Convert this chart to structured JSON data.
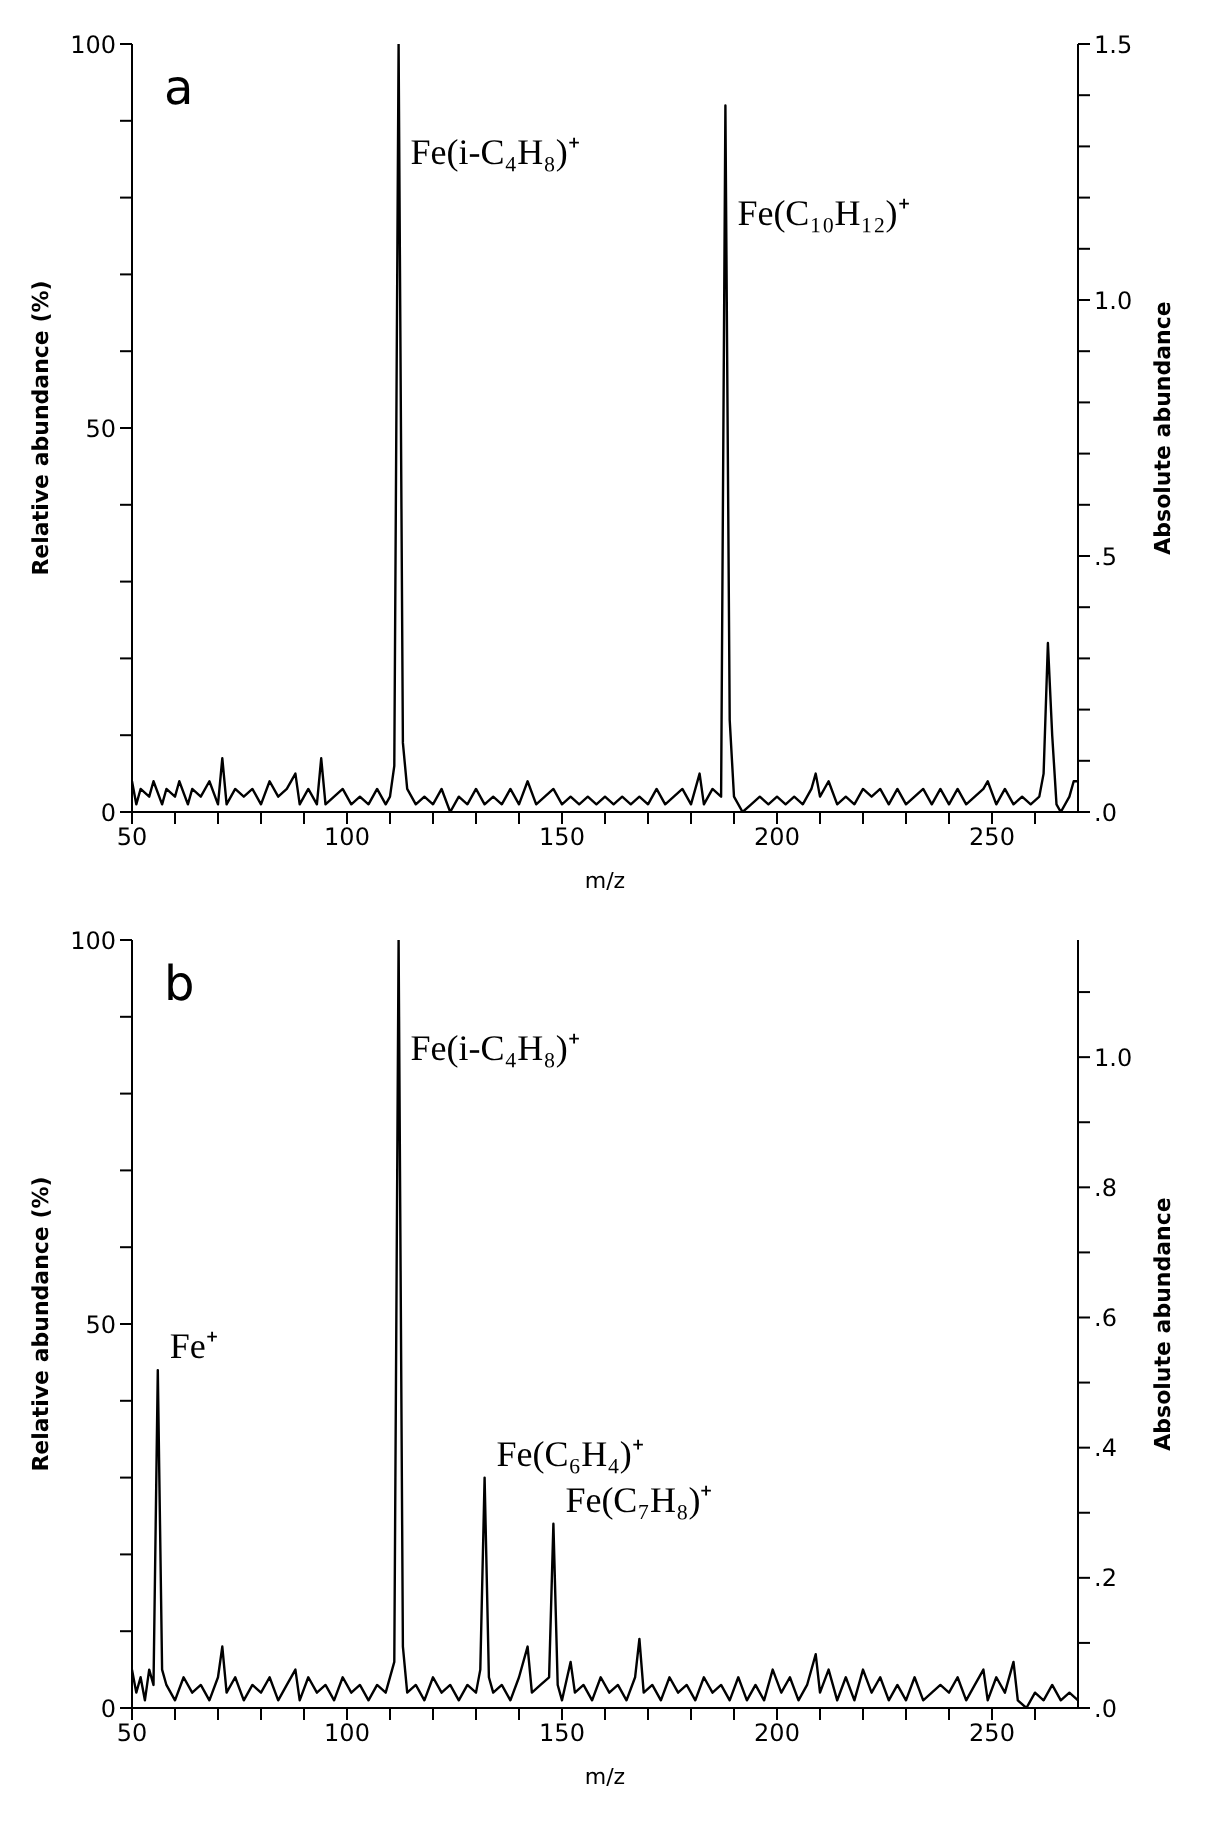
{
  "chart_data": [
    {
      "type": "line",
      "xlabel": "m/z",
      "ylabel": "Relative abundance (%)",
      "y2label": "Absolute abundance",
      "annotations": [
        "a",
        {
          "text": "Fe(i-C₄H₈)⁺",
          "x": 112,
          "y": 100
        },
        {
          "text": "Fe(C₁₀H₁₂)⁺",
          "x": 188,
          "y": 92
        }
      ],
      "xlim": [
        50,
        270
      ],
      "xticks": [
        50,
        {
          "value": 60,
          "label": null
        },
        {
          "value": 70,
          "label": null
        },
        {
          "value": 80,
          "label": null
        },
        {
          "value": 90,
          "label": null
        },
        100,
        {
          "value": 110,
          "label": null
        },
        {
          "value": 120,
          "label": null
        },
        {
          "value": 130,
          "label": null
        },
        {
          "value": 140,
          "label": null
        },
        150,
        {
          "value": 160,
          "label": null
        },
        {
          "value": 170,
          "label": null
        },
        {
          "value": 180,
          "label": null
        },
        {
          "value": 190,
          "label": null
        },
        200,
        {
          "value": 210,
          "label": null
        },
        {
          "value": 220,
          "label": null
        },
        {
          "value": 230,
          "label": null
        },
        {
          "value": 240,
          "label": null
        },
        250,
        {
          "value": 260,
          "label": null
        }
      ],
      "ylim": [
        0,
        100
      ],
      "yticks": [
        0,
        {
          "value": 10,
          "label": null
        },
        {
          "value": 20,
          "label": null
        },
        {
          "value": 30,
          "label": null
        },
        {
          "value": 40,
          "label": null
        },
        50,
        {
          "value": 60,
          "label": null
        },
        {
          "value": 70,
          "label": null
        },
        {
          "value": 80,
          "label": null
        },
        {
          "value": 90,
          "label": null
        },
        100
      ],
      "y2lim": [
        0,
        1.5
      ],
      "y2ticks": [
        {
          "value": 0,
          "label": ".0"
        },
        {
          "value": 0.1,
          "label": null
        },
        {
          "value": 0.2,
          "label": null
        },
        {
          "value": 0.3,
          "label": null
        },
        {
          "value": 0.4,
          "label": null
        },
        {
          "value": 0.5,
          "label": ".5"
        },
        {
          "value": 0.6,
          "label": null
        },
        {
          "value": 0.7,
          "label": null
        },
        {
          "value": 0.8,
          "label": null
        },
        {
          "value": 0.9,
          "label": null
        },
        {
          "value": 1.0,
          "label": "1.0"
        },
        {
          "value": 1.1,
          "label": null
        },
        {
          "value": 1.2,
          "label": null
        },
        {
          "value": 1.3,
          "label": null
        },
        {
          "value": 1.4,
          "label": null
        },
        {
          "value": 1.5,
          "label": "1.5"
        }
      ],
      "marker": "none",
      "line_style": "solid",
      "series": [
        {
          "color": "#000000",
          "x": [
            50,
            51,
            52,
            54,
            55,
            57,
            58,
            60,
            61,
            63,
            64,
            66,
            68,
            70,
            71,
            72,
            74,
            76,
            78,
            80,
            82,
            84,
            86,
            88,
            89,
            91,
            93,
            94,
            95,
            97,
            99,
            101,
            103,
            105,
            107,
            109,
            110,
            111,
            112,
            113,
            114,
            116,
            118,
            120,
            122,
            124,
            126,
            128,
            130,
            132,
            134,
            136,
            138,
            140,
            142,
            144,
            146,
            148,
            150,
            152,
            154,
            156,
            158,
            160,
            162,
            164,
            166,
            168,
            170,
            172,
            174,
            176,
            178,
            180,
            182,
            183,
            185,
            187,
            188,
            189,
            190,
            192,
            194,
            196,
            198,
            200,
            202,
            204,
            206,
            208,
            209,
            210,
            212,
            214,
            216,
            218,
            220,
            222,
            224,
            226,
            228,
            230,
            232,
            234,
            236,
            238,
            240,
            242,
            244,
            246,
            248,
            249,
            251,
            253,
            255,
            257,
            259,
            261,
            262,
            263,
            264,
            265,
            266,
            268,
            269,
            270
          ],
          "values": [
            4,
            1,
            3,
            2,
            4,
            1,
            3,
            2,
            4,
            1,
            3,
            2,
            4,
            1,
            7,
            1,
            3,
            2,
            3,
            1,
            4,
            2,
            3,
            5,
            1,
            3,
            1,
            7,
            1,
            2,
            3,
            1,
            2,
            1,
            3,
            1,
            2,
            6,
            100,
            9,
            3,
            1,
            2,
            1,
            3,
            0,
            2,
            1,
            3,
            1,
            2,
            1,
            3,
            1,
            4,
            1,
            2,
            3,
            1,
            2,
            1,
            2,
            1,
            2,
            1,
            2,
            1,
            2,
            1,
            3,
            1,
            2,
            3,
            1,
            5,
            1,
            3,
            2,
            92,
            12,
            2,
            0,
            1,
            2,
            1,
            2,
            1,
            2,
            1,
            3,
            5,
            2,
            4,
            1,
            2,
            1,
            3,
            2,
            3,
            1,
            3,
            1,
            2,
            3,
            1,
            3,
            1,
            3,
            1,
            2,
            3,
            4,
            1,
            3,
            1,
            2,
            1,
            2,
            5,
            22,
            10,
            1,
            0,
            2,
            4,
            4
          ]
        }
      ]
    },
    {
      "type": "line",
      "xlabel": "m/z",
      "ylabel": "Relative abundance (%)",
      "y2label": "Absolute abundance",
      "annotations": [
        "b",
        {
          "text": "Fe⁺",
          "x": 56,
          "y": 44
        },
        {
          "text": "Fe(i-C₄H₈)⁺",
          "x": 112,
          "y": 100
        },
        {
          "text": "Fe(C₆H₄)⁺",
          "x": 132,
          "y": 30
        },
        {
          "text": "Fe(C₇H₈)⁺",
          "x": 148,
          "y": 24
        }
      ],
      "xlim": [
        50,
        270
      ],
      "xticks": [
        50,
        {
          "value": 60,
          "label": null
        },
        {
          "value": 70,
          "label": null
        },
        {
          "value": 80,
          "label": null
        },
        {
          "value": 90,
          "label": null
        },
        100,
        {
          "value": 110,
          "label": null
        },
        {
          "value": 120,
          "label": null
        },
        {
          "value": 130,
          "label": null
        },
        {
          "value": 140,
          "label": null
        },
        150,
        {
          "value": 160,
          "label": null
        },
        {
          "value": 170,
          "label": null
        },
        {
          "value": 180,
          "label": null
        },
        {
          "value": 190,
          "label": null
        },
        200,
        {
          "value": 210,
          "label": null
        },
        {
          "value": 220,
          "label": null
        },
        {
          "value": 230,
          "label": null
        },
        {
          "value": 240,
          "label": null
        },
        250,
        {
          "value": 260,
          "label": null
        }
      ],
      "ylim": [
        0,
        100
      ],
      "yticks": [
        0,
        {
          "value": 10,
          "label": null
        },
        {
          "value": 20,
          "label": null
        },
        {
          "value": 30,
          "label": null
        },
        {
          "value": 40,
          "label": null
        },
        50,
        {
          "value": 60,
          "label": null
        },
        {
          "value": 70,
          "label": null
        },
        {
          "value": 80,
          "label": null
        },
        {
          "value": 90,
          "label": null
        },
        100
      ],
      "y2lim": [
        0,
        1.18
      ],
      "y2ticks": [
        {
          "value": 0,
          "label": ".0"
        },
        {
          "value": 0.1,
          "label": null
        },
        {
          "value": 0.2,
          "label": ".2"
        },
        {
          "value": 0.3,
          "label": null
        },
        {
          "value": 0.4,
          "label": ".4"
        },
        {
          "value": 0.5,
          "label": null
        },
        {
          "value": 0.6,
          "label": ".6"
        },
        {
          "value": 0.7,
          "label": null
        },
        {
          "value": 0.8,
          "label": ".8"
        },
        {
          "value": 0.9,
          "label": null
        },
        {
          "value": 1.0,
          "label": "1.0"
        },
        {
          "value": 1.1,
          "label": null
        }
      ],
      "marker": "none",
      "line_style": "solid",
      "series": [
        {
          "color": "#000000",
          "x": [
            50,
            51,
            52,
            53,
            54,
            55,
            56,
            57,
            58,
            60,
            62,
            64,
            66,
            68,
            70,
            71,
            72,
            74,
            76,
            78,
            80,
            82,
            84,
            86,
            88,
            89,
            91,
            93,
            95,
            97,
            99,
            101,
            103,
            105,
            107,
            109,
            111,
            112,
            113,
            114,
            116,
            118,
            120,
            122,
            124,
            126,
            128,
            130,
            131,
            132,
            133,
            134,
            136,
            138,
            140,
            142,
            143,
            145,
            147,
            148,
            149,
            150,
            152,
            153,
            155,
            157,
            159,
            161,
            163,
            165,
            167,
            168,
            169,
            171,
            173,
            175,
            177,
            179,
            181,
            183,
            185,
            187,
            189,
            191,
            193,
            195,
            197,
            199,
            201,
            203,
            205,
            207,
            209,
            210,
            212,
            214,
            216,
            218,
            220,
            222,
            224,
            226,
            228,
            230,
            232,
            234,
            236,
            238,
            240,
            242,
            244,
            246,
            248,
            249,
            251,
            253,
            255,
            256,
            258,
            260,
            262,
            264,
            266,
            268,
            270
          ],
          "values": [
            5,
            2,
            4,
            1,
            5,
            3,
            44,
            5,
            3,
            1,
            4,
            2,
            3,
            1,
            4,
            8,
            2,
            4,
            1,
            3,
            2,
            4,
            1,
            3,
            5,
            1,
            4,
            2,
            3,
            1,
            4,
            2,
            3,
            1,
            3,
            2,
            6,
            100,
            8,
            2,
            3,
            1,
            4,
            2,
            3,
            1,
            3,
            2,
            5,
            30,
            4,
            2,
            3,
            1,
            4,
            8,
            2,
            3,
            4,
            24,
            3,
            1,
            6,
            2,
            3,
            1,
            4,
            2,
            3,
            1,
            4,
            9,
            2,
            3,
            1,
            4,
            2,
            3,
            1,
            4,
            2,
            3,
            1,
            4,
            1,
            3,
            1,
            5,
            2,
            4,
            1,
            3,
            7,
            2,
            5,
            1,
            4,
            1,
            5,
            2,
            4,
            1,
            3,
            1,
            4,
            1,
            2,
            3,
            2,
            4,
            1,
            3,
            5,
            1,
            4,
            2,
            6,
            1,
            0,
            2,
            1,
            3,
            1,
            2,
            1
          ]
        }
      ]
    }
  ]
}
